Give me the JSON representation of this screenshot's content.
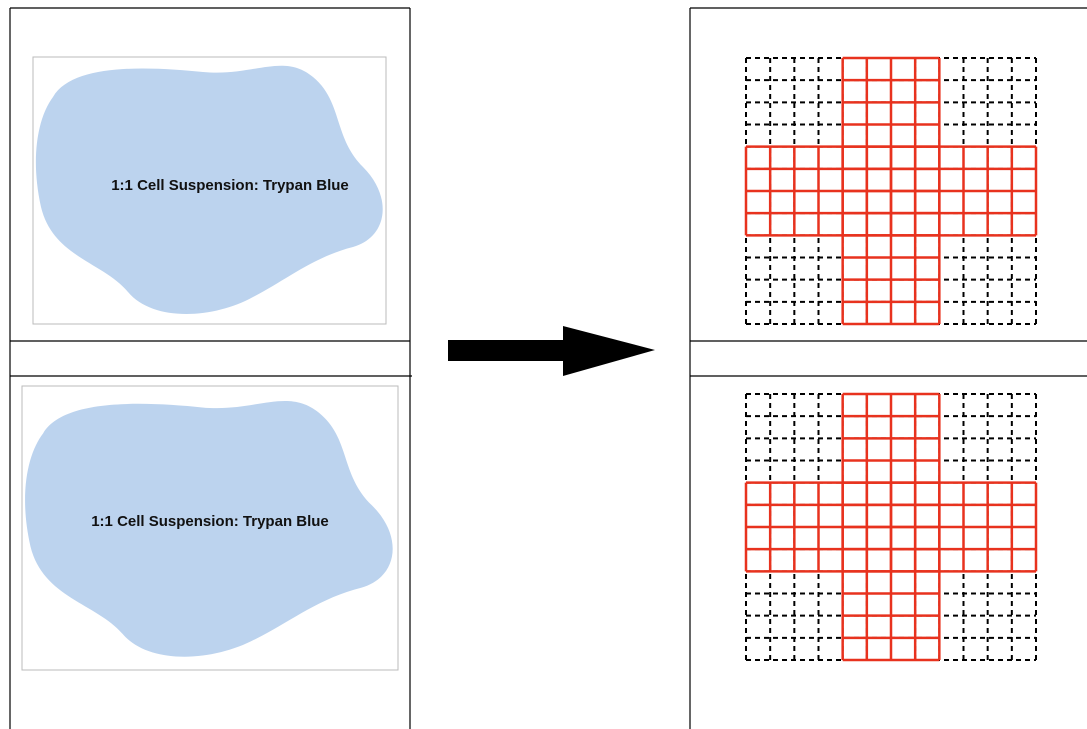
{
  "panels": [
    {
      "label": "1:1 Cell Suspension: Trypan Blue"
    },
    {
      "label": "1:1 Cell Suspension: Trypan Blue"
    }
  ]
}
